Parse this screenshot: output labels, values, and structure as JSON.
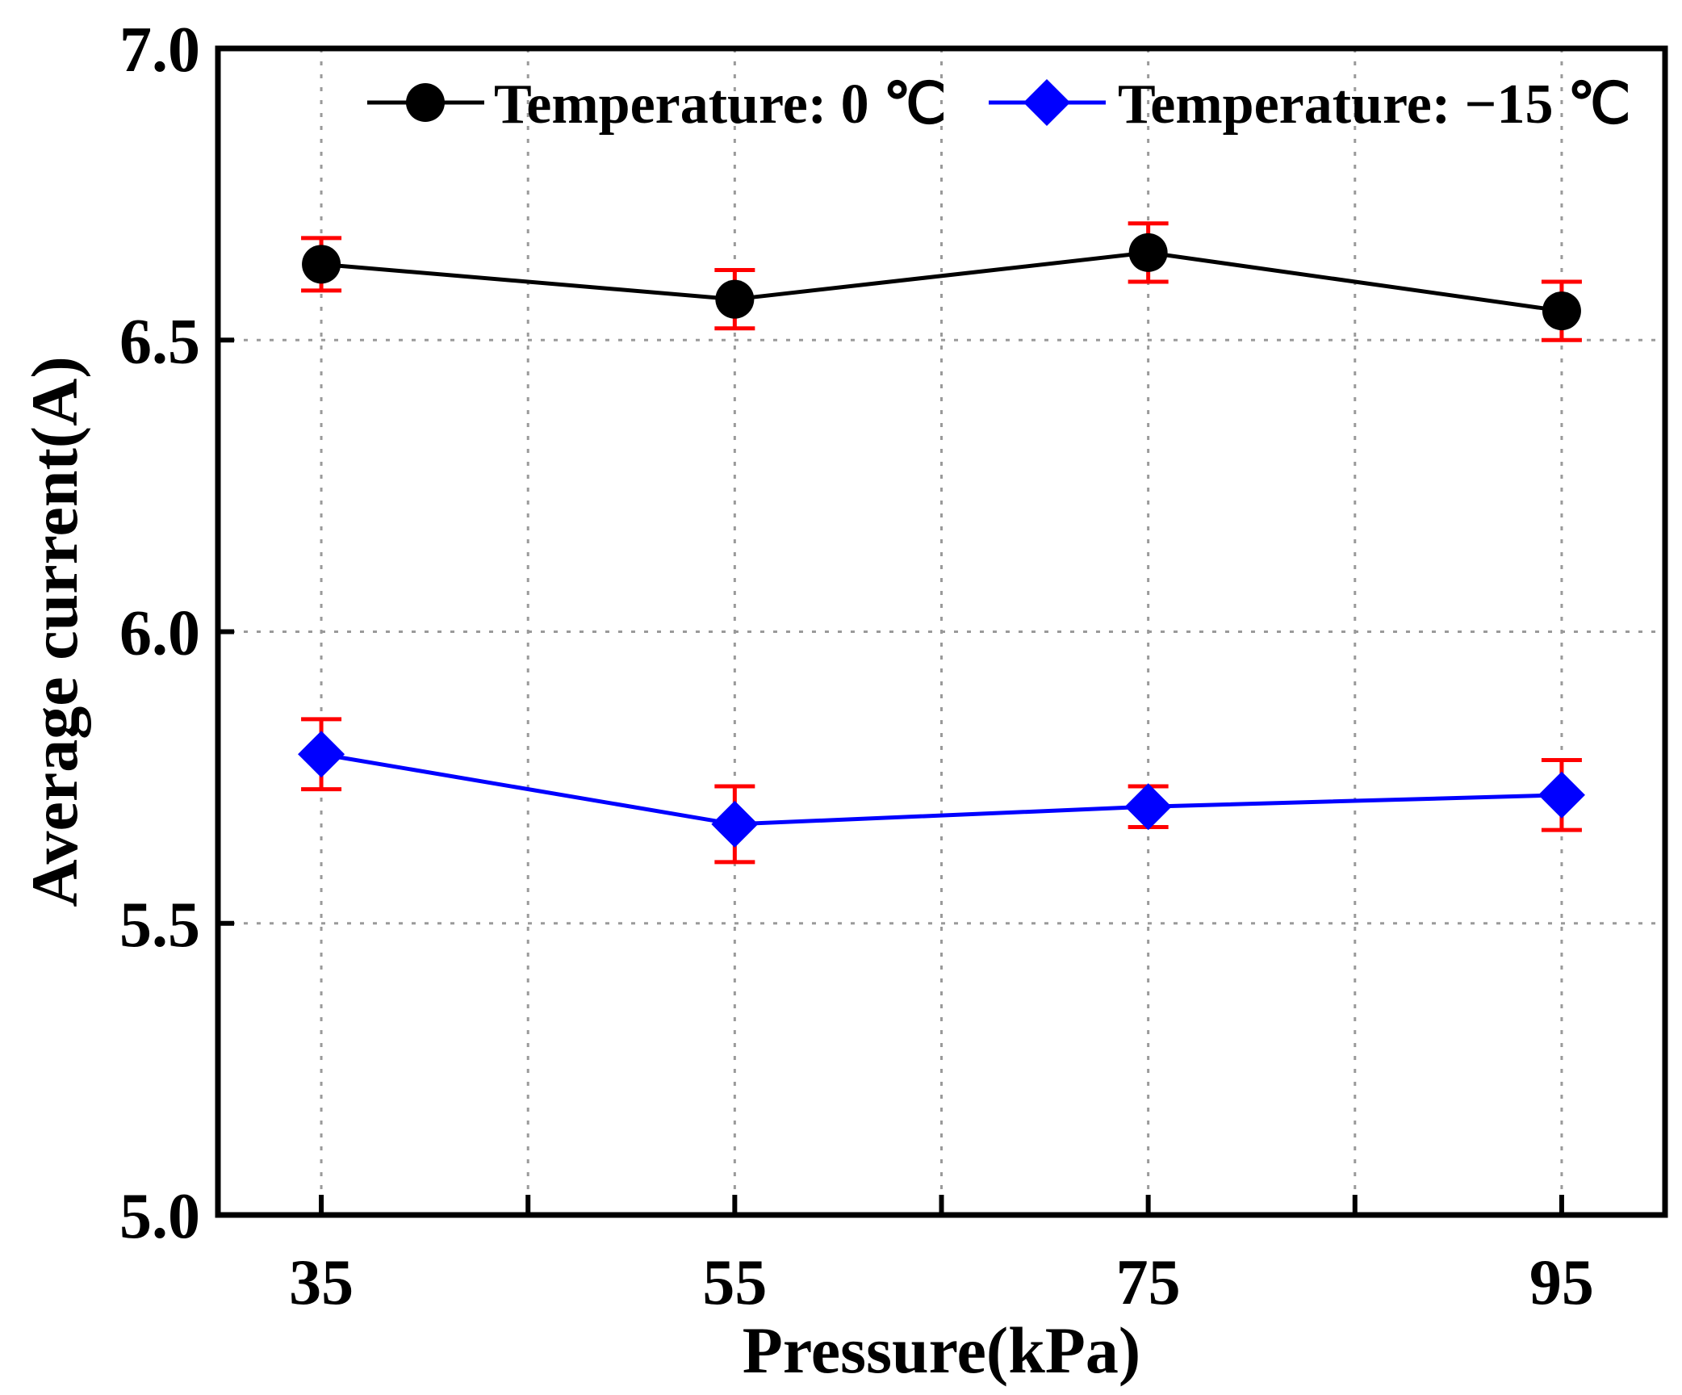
{
  "chart_data": {
    "type": "line",
    "title": "",
    "xlabel": "Pressure(kPa)",
    "ylabel": "Average current(A)",
    "x": [
      35,
      55,
      75,
      95
    ],
    "x_tick_labels": [
      "35",
      "55",
      "75",
      "95"
    ],
    "xlim": [
      30,
      100
    ],
    "ylim": [
      5.0,
      7.0
    ],
    "y_ticks": [
      5.0,
      5.5,
      6.0,
      6.5,
      7.0
    ],
    "y_tick_labels": [
      "5.0",
      "5.5",
      "6.0",
      "6.5",
      "7.0"
    ],
    "grid": true,
    "legend_position": "top",
    "error_bar_color": "#ff0000",
    "series": [
      {
        "name": "Temperature: 0 ℃",
        "color": "#000000",
        "marker": "circle",
        "values": [
          6.63,
          6.57,
          6.65,
          6.55
        ],
        "errors": [
          0.045,
          0.05,
          0.05,
          0.05
        ]
      },
      {
        "name": "Temperature: −15 ℃",
        "color": "#0000ff",
        "marker": "diamond",
        "values": [
          5.79,
          5.67,
          5.7,
          5.72
        ],
        "errors": [
          0.06,
          0.065,
          0.035,
          0.06
        ]
      }
    ]
  }
}
